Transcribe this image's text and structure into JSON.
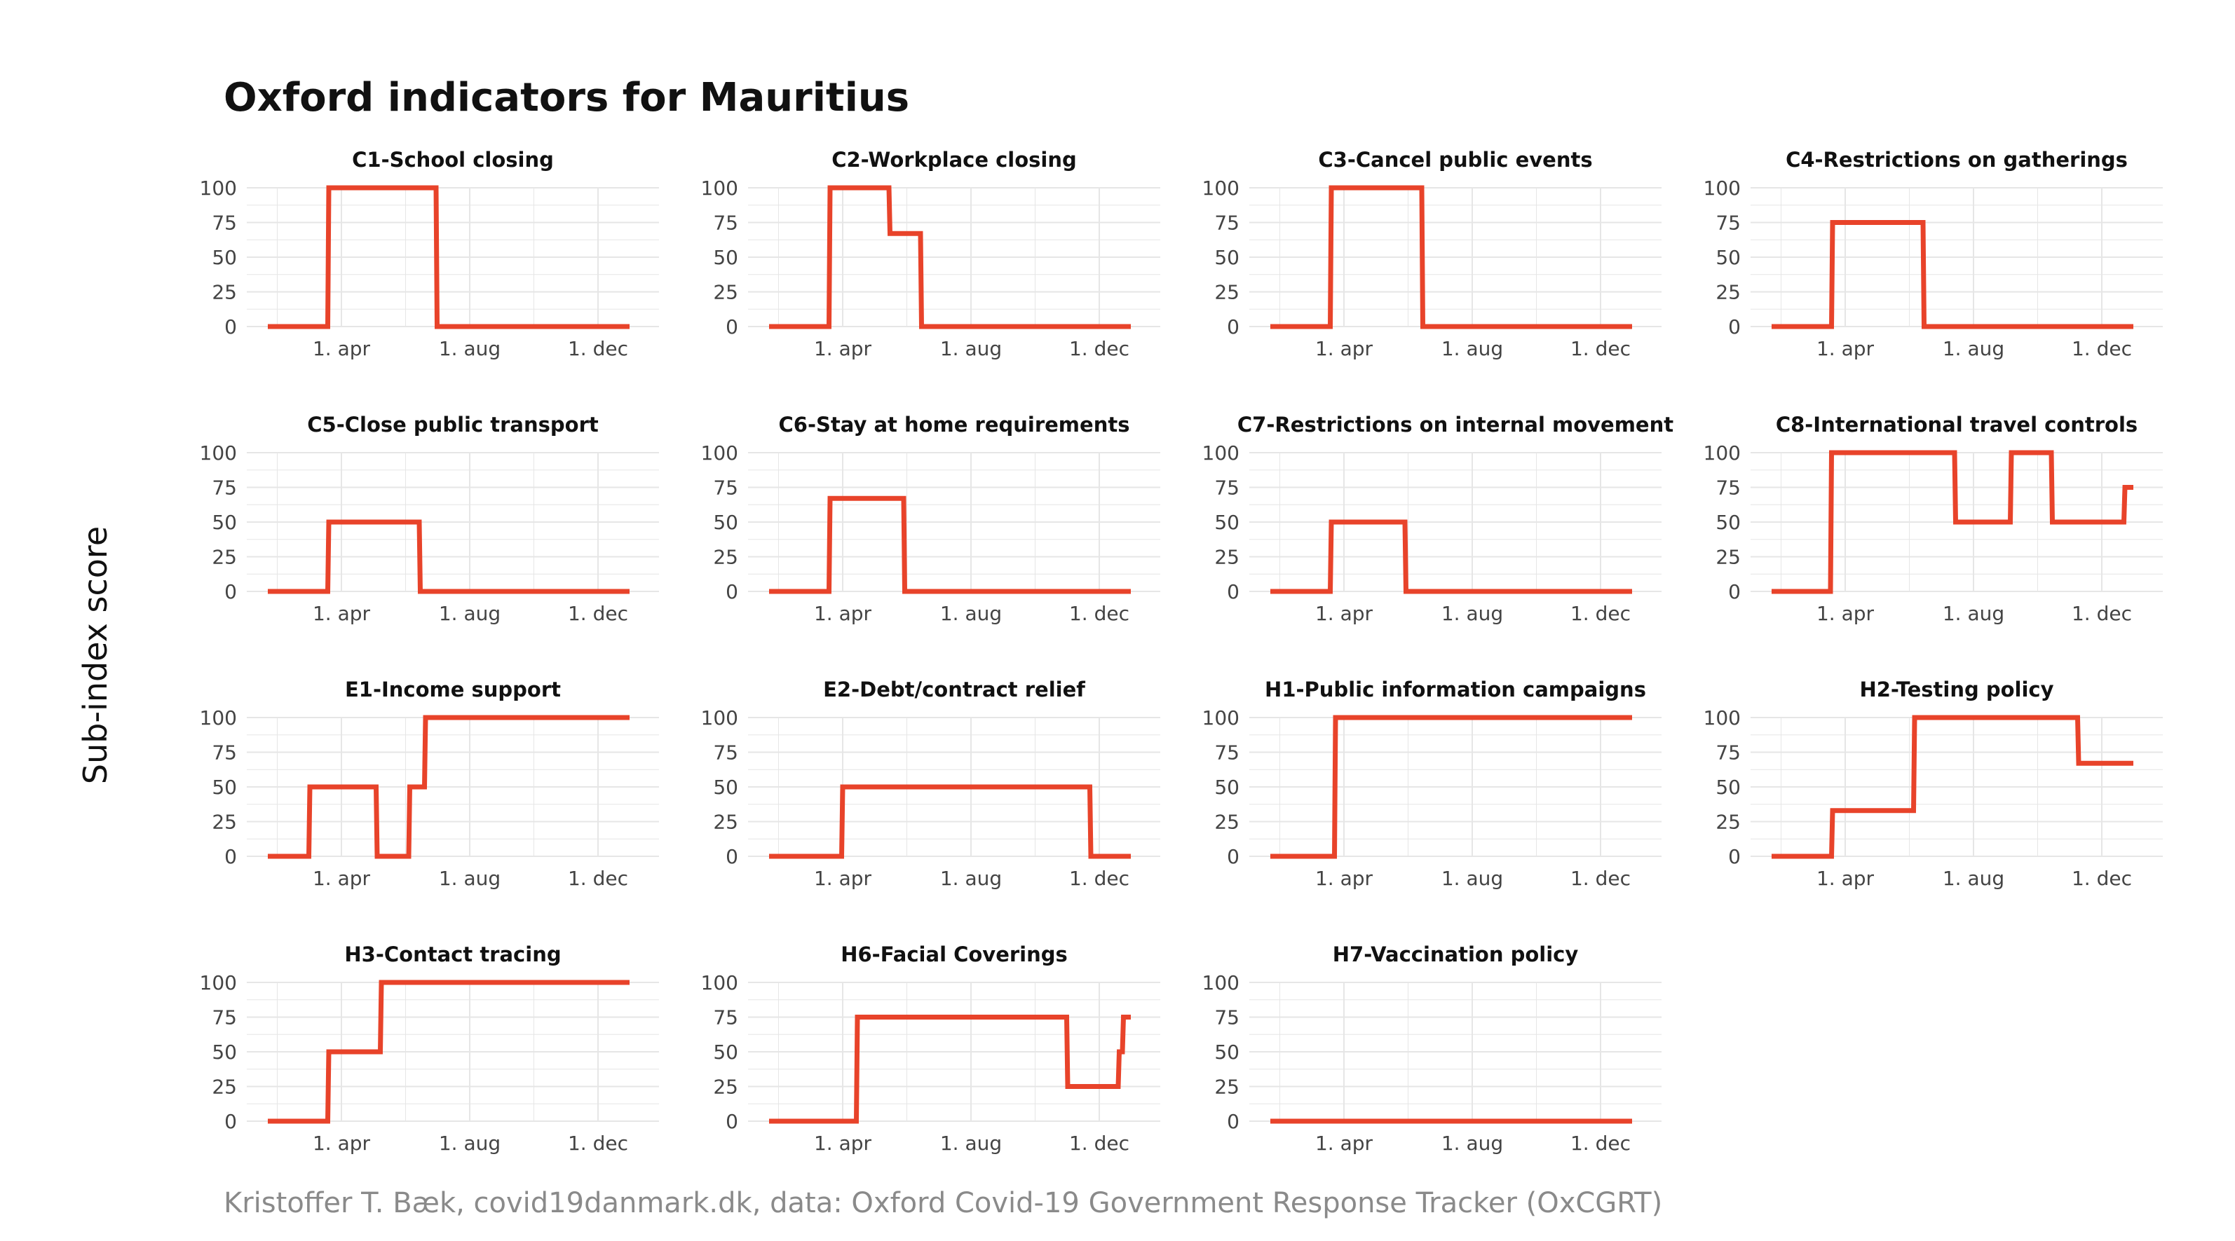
{
  "title": "Oxford indicators for Mauritius",
  "caption": "Kristoffer T. Bæk, covid19danmark.dk, data: Oxford Covid-19 Government Response Tracker (OxCGRT)",
  "ylabel": "Sub-index score",
  "colors": {
    "line": "#e8432a",
    "grid": "#e6e6e6",
    "background": "#ffffff"
  },
  "chart_data": {
    "type": "line",
    "layout": "small-multiples",
    "grid": true,
    "ylim": [
      0,
      100
    ],
    "yticks": [
      0,
      25,
      50,
      75,
      100
    ],
    "xlim": [
      "2020-01-22",
      "2021-01-08"
    ],
    "xticks": [
      {
        "date": "2020-04-01",
        "label": "1. apr"
      },
      {
        "date": "2020-08-01",
        "label": "1. aug"
      },
      {
        "date": "2020-12-01",
        "label": "1. dec"
      }
    ],
    "panels": [
      {
        "name": "C1-School closing",
        "points": [
          [
            "2020-01-22",
            0
          ],
          [
            "2020-03-19",
            0
          ],
          [
            "2020-03-20",
            100
          ],
          [
            "2020-06-30",
            100
          ],
          [
            "2020-07-01",
            0
          ],
          [
            "2020-12-31",
            0
          ]
        ]
      },
      {
        "name": "C2-Workplace closing",
        "points": [
          [
            "2020-01-22",
            0
          ],
          [
            "2020-03-19",
            0
          ],
          [
            "2020-03-20",
            100
          ],
          [
            "2020-05-15",
            100
          ],
          [
            "2020-05-16",
            67
          ],
          [
            "2020-06-14",
            67
          ],
          [
            "2020-06-15",
            0
          ],
          [
            "2020-12-31",
            0
          ]
        ]
      },
      {
        "name": "C3-Cancel public events",
        "points": [
          [
            "2020-01-22",
            0
          ],
          [
            "2020-03-19",
            0
          ],
          [
            "2020-03-20",
            100
          ],
          [
            "2020-06-14",
            100
          ],
          [
            "2020-06-15",
            0
          ],
          [
            "2020-12-31",
            0
          ]
        ]
      },
      {
        "name": "C4-Restrictions on gatherings",
        "points": [
          [
            "2020-01-22",
            0
          ],
          [
            "2020-03-19",
            0
          ],
          [
            "2020-03-20",
            75
          ],
          [
            "2020-06-14",
            75
          ],
          [
            "2020-06-15",
            0
          ],
          [
            "2020-12-31",
            0
          ]
        ]
      },
      {
        "name": "C5-Close public transport",
        "points": [
          [
            "2020-01-22",
            0
          ],
          [
            "2020-03-19",
            0
          ],
          [
            "2020-03-20",
            50
          ],
          [
            "2020-06-14",
            50
          ],
          [
            "2020-06-15",
            0
          ],
          [
            "2020-12-31",
            0
          ]
        ]
      },
      {
        "name": "C6-Stay at home requirements",
        "points": [
          [
            "2020-01-22",
            0
          ],
          [
            "2020-03-19",
            0
          ],
          [
            "2020-03-20",
            67
          ],
          [
            "2020-05-29",
            67
          ],
          [
            "2020-05-30",
            0
          ],
          [
            "2020-12-31",
            0
          ]
        ]
      },
      {
        "name": "C7-Restrictions on internal movement",
        "points": [
          [
            "2020-01-22",
            0
          ],
          [
            "2020-03-19",
            0
          ],
          [
            "2020-03-20",
            50
          ],
          [
            "2020-05-29",
            50
          ],
          [
            "2020-05-30",
            0
          ],
          [
            "2020-12-31",
            0
          ]
        ]
      },
      {
        "name": "C8-International travel controls",
        "points": [
          [
            "2020-01-22",
            0
          ],
          [
            "2020-03-18",
            0
          ],
          [
            "2020-03-19",
            100
          ],
          [
            "2020-07-14",
            100
          ],
          [
            "2020-07-15",
            50
          ],
          [
            "2020-09-05",
            50
          ],
          [
            "2020-09-06",
            100
          ],
          [
            "2020-10-14",
            100
          ],
          [
            "2020-10-15",
            50
          ],
          [
            "2020-12-22",
            50
          ],
          [
            "2020-12-23",
            75
          ],
          [
            "2020-12-31",
            75
          ]
        ]
      },
      {
        "name": "E1-Income support",
        "points": [
          [
            "2020-01-22",
            0
          ],
          [
            "2020-03-01",
            0
          ],
          [
            "2020-03-02",
            50
          ],
          [
            "2020-05-04",
            50
          ],
          [
            "2020-05-05",
            0
          ],
          [
            "2020-06-04",
            0
          ],
          [
            "2020-06-05",
            50
          ],
          [
            "2020-06-19",
            50
          ],
          [
            "2020-06-20",
            100
          ],
          [
            "2020-12-31",
            100
          ]
        ]
      },
      {
        "name": "E2-Debt/contract relief",
        "points": [
          [
            "2020-01-22",
            0
          ],
          [
            "2020-03-31",
            0
          ],
          [
            "2020-04-01",
            50
          ],
          [
            "2020-11-22",
            50
          ],
          [
            "2020-11-23",
            0
          ],
          [
            "2020-12-31",
            0
          ]
        ]
      },
      {
        "name": "H1-Public information campaigns",
        "points": [
          [
            "2020-01-22",
            0
          ],
          [
            "2020-03-23",
            0
          ],
          [
            "2020-03-24",
            100
          ],
          [
            "2020-12-31",
            100
          ]
        ]
      },
      {
        "name": "H2-Testing policy",
        "points": [
          [
            "2020-01-22",
            0
          ],
          [
            "2020-03-19",
            0
          ],
          [
            "2020-03-20",
            33
          ],
          [
            "2020-06-05",
            33
          ],
          [
            "2020-06-06",
            100
          ],
          [
            "2020-11-08",
            100
          ],
          [
            "2020-11-09",
            67
          ],
          [
            "2020-12-31",
            67
          ]
        ]
      },
      {
        "name": "H3-Contact tracing",
        "points": [
          [
            "2020-01-22",
            0
          ],
          [
            "2020-03-19",
            0
          ],
          [
            "2020-03-20",
            50
          ],
          [
            "2020-05-08",
            50
          ],
          [
            "2020-05-09",
            100
          ],
          [
            "2020-12-31",
            100
          ]
        ]
      },
      {
        "name": "H6-Facial Coverings",
        "points": [
          [
            "2020-01-22",
            0
          ],
          [
            "2020-04-14",
            0
          ],
          [
            "2020-04-15",
            75
          ],
          [
            "2020-10-31",
            75
          ],
          [
            "2020-11-01",
            25
          ],
          [
            "2020-12-19",
            25
          ],
          [
            "2020-12-20",
            50
          ],
          [
            "2020-12-23",
            50
          ],
          [
            "2020-12-24",
            75
          ],
          [
            "2020-12-31",
            75
          ]
        ]
      },
      {
        "name": "H7-Vaccination policy",
        "points": [
          [
            "2020-01-22",
            0
          ],
          [
            "2020-12-31",
            0
          ]
        ]
      }
    ]
  }
}
